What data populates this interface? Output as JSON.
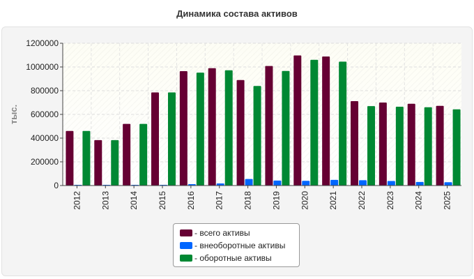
{
  "chart_data": {
    "type": "bar",
    "title": "Динамика состава активов",
    "ylabel": "тыс.",
    "xlabel": "",
    "ylim": [
      0,
      1200000
    ],
    "yticks": [
      0,
      200000,
      400000,
      600000,
      800000,
      1000000,
      1200000
    ],
    "grid": true,
    "legend_placement": "bottom-center",
    "categories": [
      "2012",
      "2013",
      "2014",
      "2015",
      "2016",
      "2017",
      "2018",
      "2019",
      "2020",
      "2021",
      "2022",
      "2023",
      "2024",
      "2025"
    ],
    "series": [
      {
        "name": "- всего активы",
        "color": "#660033",
        "values": [
          460000,
          383000,
          520000,
          785000,
          965000,
          990000,
          890000,
          1008000,
          1097000,
          1088000,
          712000,
          700000,
          690000,
          672000
        ]
      },
      {
        "name": "- внеоборотные активы",
        "color": "#0066ff",
        "values": [
          3000,
          3000,
          3000,
          4000,
          12000,
          18000,
          55000,
          42000,
          40000,
          48000,
          45000,
          38000,
          30000,
          28000
        ]
      },
      {
        "name": "- оборотные активы",
        "color": "#008833",
        "values": [
          460000,
          383000,
          520000,
          785000,
          952000,
          972000,
          840000,
          966000,
          1060000,
          1045000,
          670000,
          665000,
          660000,
          643000
        ]
      }
    ]
  }
}
